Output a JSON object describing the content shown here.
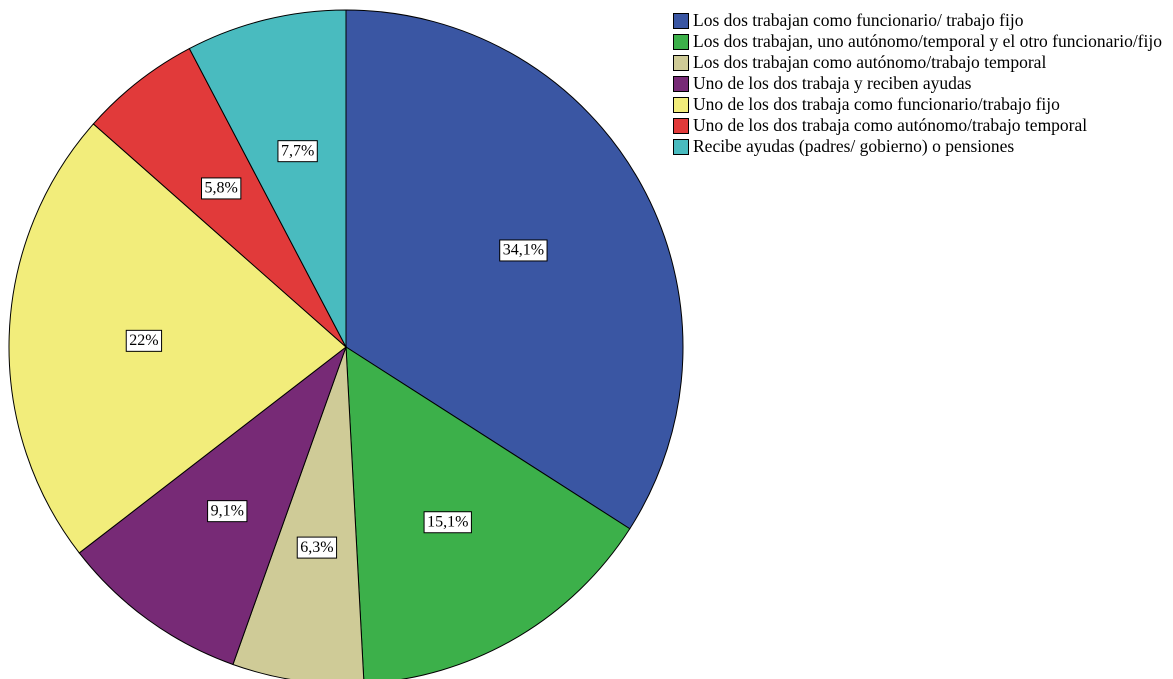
{
  "chart_data": {
    "type": "pie",
    "categories": [
      "Los dos trabajan como funcionario/ trabajo fijo",
      "Los dos trabajan, uno autónomo/temporal y el otro funcionario/fijo",
      "Los dos trabajan como autónomo/trabajo temporal",
      "Uno de los dos trabaja y reciben ayudas",
      "Uno de los dos trabaja como funcionario/trabajo fijo",
      "Uno de los dos trabaja como autónomo/trabajo temporal",
      "Recibe ayudas (padres/ gobierno) o pensiones"
    ],
    "values": [
      34.1,
      15.1,
      6.3,
      9.1,
      22,
      5.8,
      7.7
    ],
    "value_labels": [
      "34,1%",
      "15,1%",
      "6,3%",
      "9,1%",
      "22%",
      "5,8%",
      "7,7%"
    ],
    "colors": [
      "#3a56a3",
      "#3cb04a",
      "#cfcb97",
      "#772a76",
      "#f2ed7b",
      "#e13a3a",
      "#49bbbf"
    ],
    "legend": "top-right"
  }
}
